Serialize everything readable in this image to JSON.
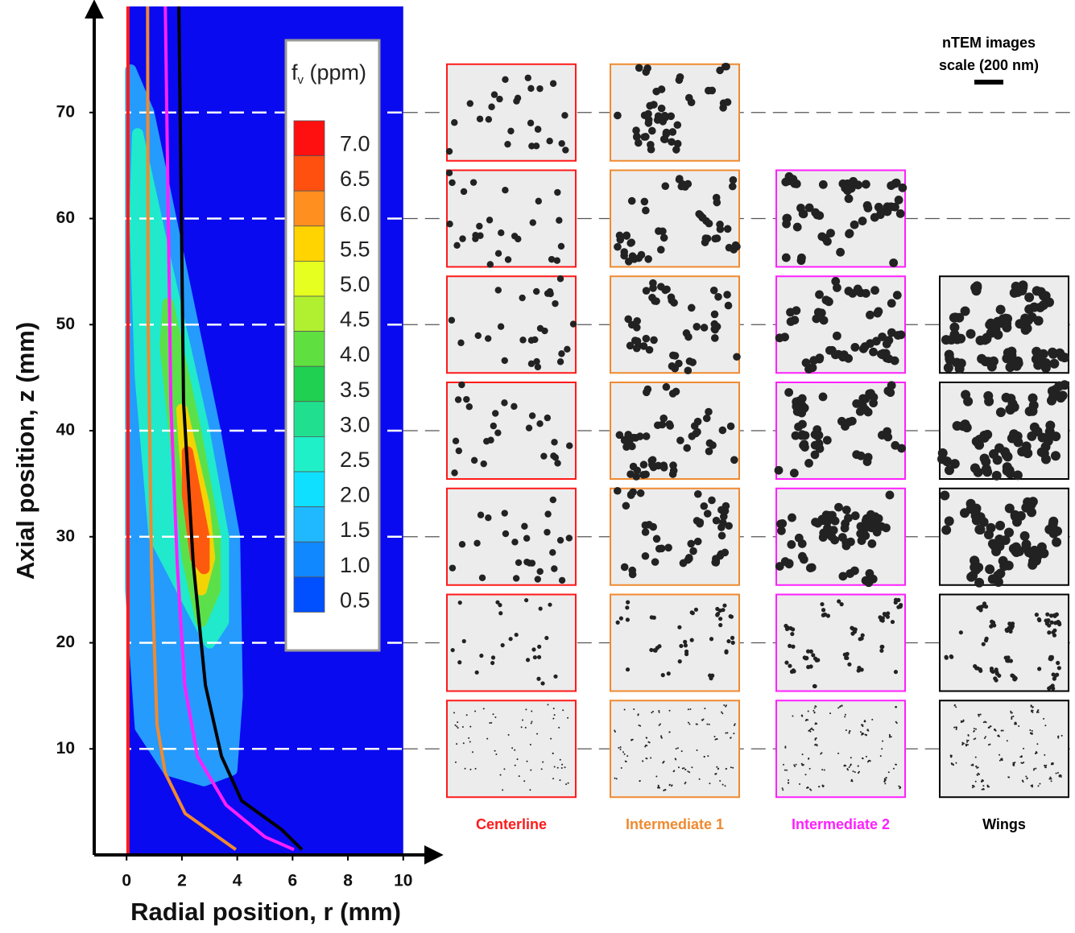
{
  "chart_data": {
    "type": "contour",
    "xlabel": "Radial position, r (mm)",
    "ylabel": "Axial position, z (mm)",
    "xlim": [
      -1.17,
      11.2
    ],
    "ylim": [
      0,
      80
    ],
    "xticks": [
      0,
      2,
      4,
      6,
      8,
      10
    ],
    "yticks": [
      10,
      20,
      30,
      40,
      50,
      60,
      70
    ],
    "background": "#0a0af0",
    "colorbar": {
      "label_base": "f",
      "label_sub": "v",
      "label_rest": " (ppm)",
      "levels": [
        {
          "value": 7,
          "label": "7.0"
        },
        {
          "value": 6.5,
          "label": "6.5"
        },
        {
          "value": 6,
          "label": "6.0"
        },
        {
          "value": 5.5,
          "label": "5.5"
        },
        {
          "value": 5,
          "label": "5.0"
        },
        {
          "value": 4.5,
          "label": "4.5"
        },
        {
          "value": 4,
          "label": "4.0"
        },
        {
          "value": 3.5,
          "label": "3.5"
        },
        {
          "value": 3,
          "label": "3.0"
        },
        {
          "value": 2.5,
          "label": "2.5"
        },
        {
          "value": 2,
          "label": "2.0"
        },
        {
          "value": 1.5,
          "label": "1.5"
        },
        {
          "value": 1,
          "label": "1.0"
        },
        {
          "value": 0.5,
          "label": "0.5"
        }
      ],
      "colors": [
        "#ff1010",
        "#ff5010",
        "#ff9020",
        "#ffd400",
        "#e6ff20",
        "#b0f030",
        "#60e040",
        "#20d050",
        "#20e090",
        "#20f0c8",
        "#10e0ff",
        "#20b8ff",
        "#1088ff",
        "#0050ff"
      ]
    },
    "contours": [
      {
        "level": 1.5,
        "color": "#28a8ff",
        "r": [
          0.15,
          0.8,
          2,
          3.2,
          3.9,
          4,
          3.8,
          2.8,
          1.5,
          0.5,
          0.15
        ],
        "z": [
          74,
          70,
          55,
          40,
          30,
          15,
          8,
          7,
          8,
          12,
          25
        ]
      },
      {
        "level": 2.5,
        "color": "#20f0c8",
        "r": [
          0.4,
          1.5,
          2.8,
          3.5,
          3.5,
          3,
          2,
          1,
          0.5,
          0.3
        ],
        "z": [
          68,
          55,
          40,
          30,
          22,
          20,
          25,
          30,
          45,
          60
        ]
      },
      {
        "level": 4,
        "color": "#60e040",
        "r": [
          1.5,
          2.5,
          3.2,
          3.2,
          2.7,
          2.2,
          1.8,
          1.4
        ],
        "z": [
          52,
          40,
          30,
          25,
          22,
          28,
          38,
          48
        ]
      },
      {
        "level": 5.5,
        "color": "#ffd400",
        "r": [
          2,
          2.8,
          3,
          2.7,
          2.4,
          2.1
        ],
        "z": [
          42,
          33,
          28,
          25,
          30,
          38
        ]
      },
      {
        "level": 6.5,
        "color": "#ff5010",
        "r": [
          2.2,
          2.8,
          2.8,
          2.5,
          2.2
        ],
        "z": [
          38,
          30,
          27,
          28,
          34
        ]
      }
    ],
    "series": [
      {
        "name": "Centerline",
        "color": "#ff1a1a",
        "x": [
          0.05,
          0.05
        ],
        "values": [
          0,
          80
        ],
        "image_z": [
          70,
          60,
          50,
          40,
          30,
          20,
          10
        ]
      },
      {
        "name": "Intermediate 1",
        "color": "#f08a30",
        "x": [
          3.95,
          2.12,
          1.4,
          1.1,
          0.9,
          0.78,
          0.76
        ],
        "values": [
          0.5,
          3.9,
          7.7,
          12.3,
          27.5,
          50,
          80
        ],
        "image_z": [
          70,
          60,
          50,
          40,
          30,
          20,
          10
        ]
      },
      {
        "name": "Intermediate 2",
        "color": "#ff20ff",
        "x": [
          6.05,
          5,
          3.6,
          2.56,
          2.1,
          1.83,
          1.6,
          1.4
        ],
        "values": [
          0.5,
          1.7,
          4.7,
          9.3,
          16,
          27.5,
          42.6,
          80
        ],
        "image_z": [
          60,
          50,
          40,
          30,
          20,
          10
        ]
      },
      {
        "name": "Wings",
        "color": "#000000",
        "x": [
          6.34,
          5.6,
          4.16,
          3.43,
          2.85,
          2.41,
          2.06,
          1.89
        ],
        "values": [
          0.5,
          2.4,
          5.1,
          9.3,
          16,
          27.5,
          42.6,
          80
        ],
        "image_z": [
          50,
          40,
          30,
          20,
          10
        ]
      }
    ],
    "scale_label": [
      "nTEM images",
      "scale (200 nm)"
    ]
  }
}
